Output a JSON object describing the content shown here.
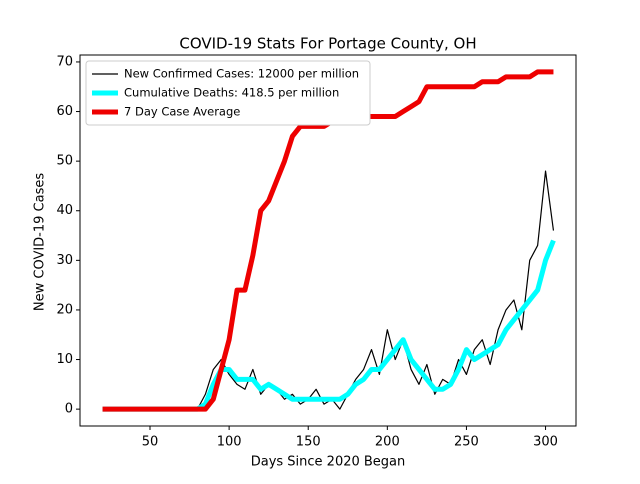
{
  "chart_data": {
    "type": "line",
    "title": "COVID-19 Stats For Portage County, OH",
    "x_label": "Days Since 2020 Began",
    "y_label": "New COVID-19 Cases",
    "x": [
      20,
      25,
      30,
      35,
      40,
      45,
      50,
      55,
      60,
      65,
      70,
      75,
      80,
      85,
      90,
      95,
      100,
      105,
      110,
      115,
      120,
      125,
      130,
      135,
      140,
      145,
      150,
      155,
      160,
      165,
      170,
      175,
      180,
      185,
      190,
      195,
      200,
      205,
      210,
      215,
      220,
      225,
      230,
      235,
      240,
      245,
      250,
      255,
      260,
      265,
      270,
      275,
      280,
      285,
      290,
      295,
      300,
      305
    ],
    "series": [
      {
        "name": "New Confirmed Cases: 12000 per million",
        "color": "#000000",
        "width": 1.2,
        "values": [
          0,
          0,
          0,
          0,
          0,
          0,
          0,
          0,
          0,
          0,
          0,
          0,
          0,
          3,
          8,
          10,
          7,
          5,
          4,
          8,
          3,
          5,
          4,
          2,
          3,
          1,
          2,
          4,
          1,
          2,
          0,
          3,
          6,
          8,
          12,
          7,
          16,
          10,
          14,
          8,
          5,
          9,
          3,
          6,
          5,
          10,
          7,
          12,
          14,
          9,
          16,
          20,
          22,
          16,
          30,
          33,
          48,
          36
        ]
      },
      {
        "name": "Cumulative Deaths: 418.5 per million",
        "color": "#00ffff",
        "width": 5,
        "values": [
          0,
          0,
          0,
          0,
          0,
          0,
          0,
          0,
          0,
          0,
          0,
          0,
          0,
          1,
          5,
          8,
          8,
          6,
          6,
          6,
          4,
          5,
          4,
          3,
          2,
          2,
          2,
          2,
          2,
          2,
          2,
          3,
          5,
          6,
          8,
          8,
          10,
          12,
          14,
          10,
          8,
          6,
          4,
          4,
          5,
          8,
          12,
          10,
          11,
          12,
          13,
          16,
          18,
          20,
          22,
          24,
          30,
          34
        ]
      },
      {
        "name": "7 Day Case Average",
        "color": "#ee0000",
        "width": 5,
        "values": [
          0,
          0,
          0,
          0,
          0,
          0,
          0,
          0,
          0,
          0,
          0,
          0,
          0,
          0,
          2,
          8,
          14,
          24,
          24,
          31,
          40,
          42,
          46,
          50,
          55,
          57,
          57,
          57,
          57,
          58,
          58,
          58,
          58,
          59,
          59,
          59,
          59,
          59,
          60,
          61,
          62,
          65,
          65,
          65,
          65,
          65,
          65,
          65,
          66,
          66,
          66,
          67,
          67,
          67,
          67,
          68,
          68,
          68
        ]
      }
    ],
    "xlim": [
      5.75,
      319.25
    ],
    "ylim": [
      -3.4,
      71.4
    ],
    "xticks": [
      50,
      100,
      150,
      200,
      250,
      300
    ],
    "yticks": [
      0,
      10,
      20,
      30,
      40,
      50,
      60,
      70
    ],
    "legend": "upper left"
  }
}
